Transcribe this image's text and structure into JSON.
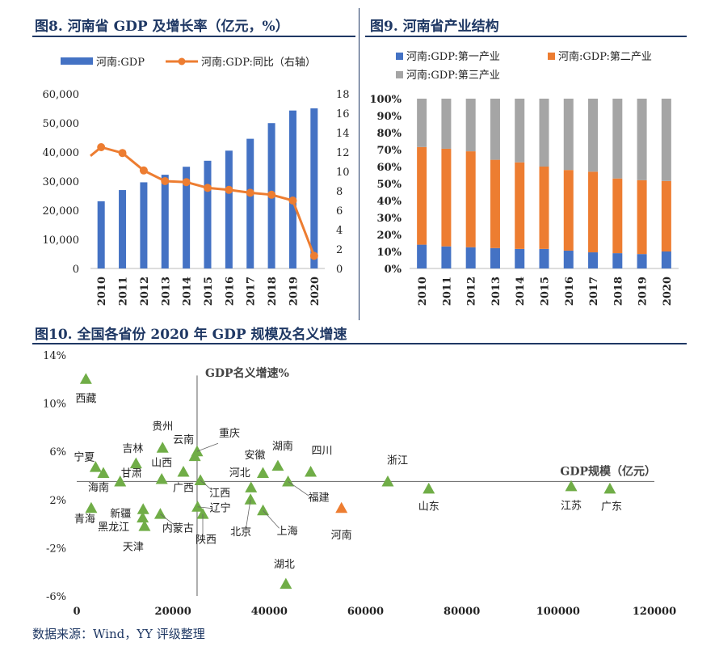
{
  "fig8": {
    "title": "图8. 河南省 GDP 及增长率（亿元，%）",
    "chart_data": {
      "type": "bar+line",
      "categories": [
        "2010",
        "2011",
        "2012",
        "2013",
        "2014",
        "2015",
        "2016",
        "2017",
        "2018",
        "2019",
        "2020"
      ],
      "series": [
        {
          "name": "河南:GDP",
          "kind": "bar",
          "axis": "left",
          "color": "#4472c4",
          "values": [
            23092,
            26931,
            29599,
            32191,
            34938,
            37002,
            40471,
            44553,
            49936,
            54259,
            54997
          ]
        },
        {
          "name": "河南:GDP:同比（右轴）",
          "kind": "line",
          "axis": "right",
          "color": "#ed7d31",
          "values": [
            12.5,
            11.9,
            10.1,
            9.0,
            8.9,
            8.3,
            8.1,
            7.8,
            7.6,
            7.0,
            1.3
          ]
        }
      ],
      "y_left": {
        "min": 0,
        "max": 60000,
        "ticks": [
          "0",
          "10,000",
          "20,000",
          "30,000",
          "40,000",
          "50,000",
          "60,000"
        ]
      },
      "y_right": {
        "min": 0,
        "max": 18,
        "ticks": [
          "0",
          "2",
          "4",
          "6",
          "8",
          "10",
          "12",
          "14",
          "16",
          "18"
        ]
      }
    }
  },
  "fig9": {
    "title": "图9. 河南省产业结构",
    "chart_data": {
      "type": "stacked-bar-100",
      "categories": [
        "2010",
        "2011",
        "2012",
        "2013",
        "2014",
        "2015",
        "2016",
        "2017",
        "2018",
        "2019",
        "2020"
      ],
      "series": [
        {
          "name": "河南:GDP:第一产业",
          "color": "#4472c4",
          "values": [
            14,
            13,
            12.5,
            12,
            11.5,
            11.5,
            10.5,
            9.5,
            9,
            8.5,
            10
          ]
        },
        {
          "name": "河南:GDP:第二产业",
          "color": "#ed7d31",
          "values": [
            57.5,
            57.5,
            56.5,
            52,
            51,
            48.5,
            47.5,
            47.5,
            44,
            43.5,
            41.5
          ]
        },
        {
          "name": "河南:GDP:第三产业",
          "color": "#a5a5a5",
          "values": [
            28.5,
            29.5,
            31,
            36,
            37.5,
            40,
            42,
            43,
            47,
            48,
            48.5
          ]
        }
      ],
      "y_ticks": [
        "0%",
        "10%",
        "20%",
        "30%",
        "40%",
        "50%",
        "60%",
        "70%",
        "80%",
        "90%",
        "100%"
      ]
    }
  },
  "fig10": {
    "title": "图10. 全国各省份 2020 年 GDP 规模及名义增速",
    "chart_data": {
      "type": "scatter",
      "xlabel": "GDP规模（亿元）",
      "ylabel": "GDP名义增速%",
      "x_ticks": [
        "0",
        "20000",
        "40000",
        "60000",
        "80000",
        "100000",
        "120000"
      ],
      "y_ticks": [
        "-6%",
        "-2%",
        "2%",
        "6%",
        "10%",
        "14%"
      ],
      "xlim": [
        0,
        120000
      ],
      "ylim": [
        -6,
        14
      ],
      "points": [
        {
          "name": "西藏",
          "x": 1903,
          "y": 12.0
        },
        {
          "name": "宁夏",
          "x": 3921,
          "y": 4.7
        },
        {
          "name": "海南",
          "x": 5532,
          "y": 4.2
        },
        {
          "name": "青海",
          "x": 3006,
          "y": 1.3
        },
        {
          "name": "甘肃",
          "x": 9017,
          "y": 3.5
        },
        {
          "name": "吉林",
          "x": 12311,
          "y": 5.0
        },
        {
          "name": "新疆",
          "x": 13798,
          "y": 1.2
        },
        {
          "name": "黑龙江",
          "x": 13698,
          "y": 0.5
        },
        {
          "name": "天津",
          "x": 14084,
          "y": -0.2
        },
        {
          "name": "贵州",
          "x": 17827,
          "y": 6.3
        },
        {
          "name": "山西",
          "x": 17652,
          "y": 3.7
        },
        {
          "name": "内蒙古",
          "x": 17360,
          "y": 0.8
        },
        {
          "name": "广西",
          "x": 22157,
          "y": 4.3
        },
        {
          "name": "云南",
          "x": 24522,
          "y": 5.6
        },
        {
          "name": "重庆",
          "x": 25003,
          "y": 6.0
        },
        {
          "name": "江西",
          "x": 25692,
          "y": 3.6
        },
        {
          "name": "辽宁",
          "x": 25115,
          "y": 1.4
        },
        {
          "name": "陕西",
          "x": 26182,
          "y": 0.8
        },
        {
          "name": "北京",
          "x": 36103,
          "y": 2.0
        },
        {
          "name": "河北",
          "x": 36207,
          "y": 3.0
        },
        {
          "name": "上海",
          "x": 38701,
          "y": 1.1
        },
        {
          "name": "安徽",
          "x": 38681,
          "y": 4.2
        },
        {
          "name": "湖南",
          "x": 41781,
          "y": 4.8
        },
        {
          "name": "福建",
          "x": 43904,
          "y": 3.5
        },
        {
          "name": "湖北",
          "x": 43443,
          "y": -5.0
        },
        {
          "name": "四川",
          "x": 48599,
          "y": 4.3
        },
        {
          "name": "河南",
          "x": 54997,
          "y": 1.3,
          "highlight": true
        },
        {
          "name": "浙江",
          "x": 64613,
          "y": 3.5
        },
        {
          "name": "山东",
          "x": 73129,
          "y": 2.9
        },
        {
          "name": "江苏",
          "x": 102719,
          "y": 3.1
        },
        {
          "name": "广东",
          "x": 110761,
          "y": 2.9
        }
      ]
    }
  },
  "source": "数据来源：Wind，YY 评级整理"
}
